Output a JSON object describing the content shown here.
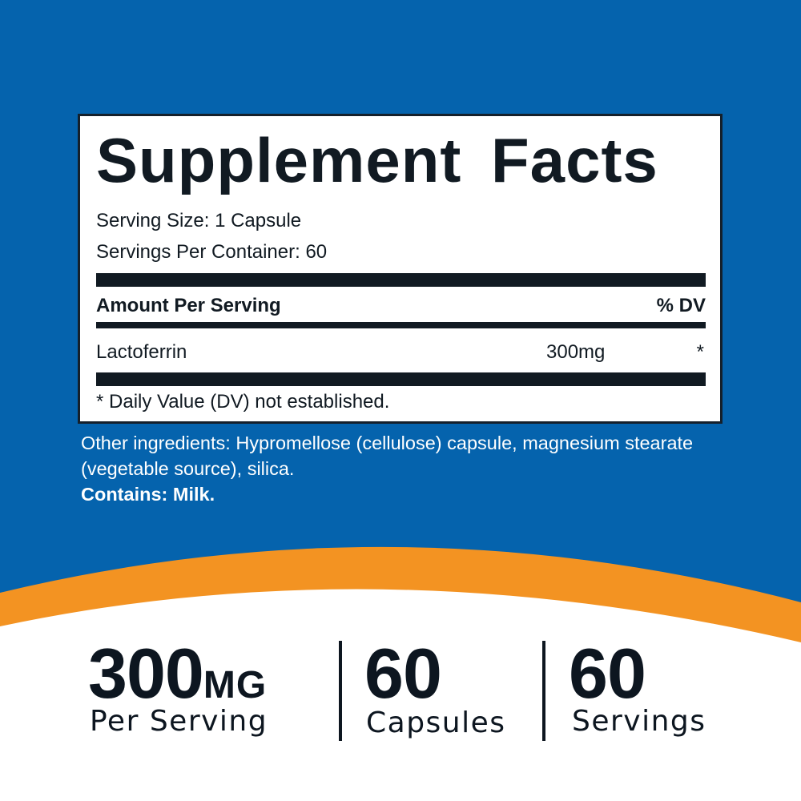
{
  "colors": {
    "background_blue": "#0563ad",
    "accent_orange": "#f39322",
    "text_dark": "#111a22"
  },
  "facts": {
    "title": "Supplement Facts",
    "serving_size": "Serving Size: 1 Capsule",
    "servings_per_container": "Servings Per Container: 60",
    "amount_header": "Amount Per Serving",
    "dv_header": "% DV",
    "ingredient": {
      "name": "Lactoferrin",
      "amount": "300mg",
      "dv": "*"
    },
    "footnote": "* Daily Value (DV) not established."
  },
  "other_ingredients": "Other ingredients: Hypromellose (cellulose) capsule, magnesium stearate (vegetable source), silica.",
  "contains": "Contains: Milk.",
  "stats": [
    {
      "value": "300",
      "unit": "MG",
      "label": "Per Serving"
    },
    {
      "value": "60",
      "unit": "",
      "label": "Capsules"
    },
    {
      "value": "60",
      "unit": "",
      "label": "Servings"
    }
  ]
}
